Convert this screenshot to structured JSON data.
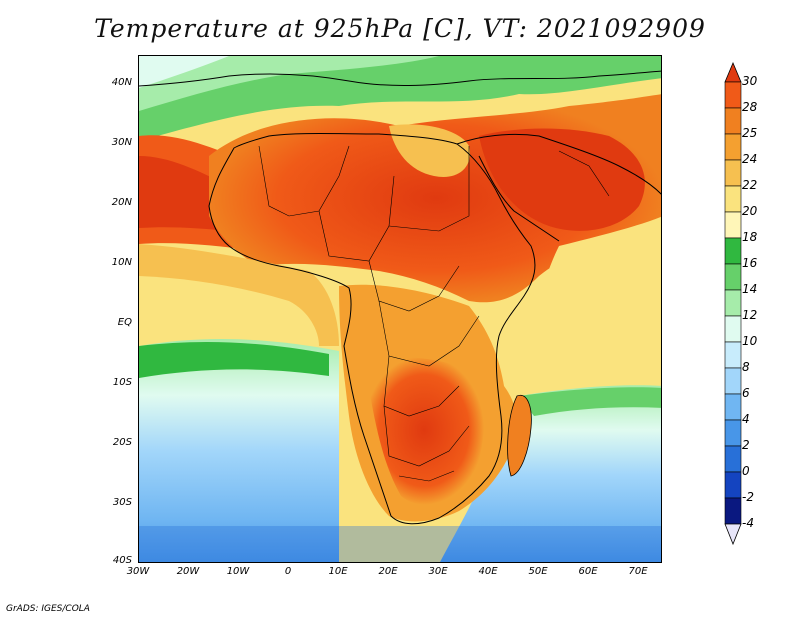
{
  "title": "Temperature at 925hPa [C], VT: 2021092909",
  "footer": "GrADS: IGES/COLA",
  "lat_labels": [
    "40N",
    "30N",
    "20N",
    "10N",
    "EQ",
    "10S",
    "20S",
    "30S",
    "40S"
  ],
  "lon_labels": [
    "30W",
    "20W",
    "10W",
    "0",
    "10E",
    "20E",
    "30E",
    "40E",
    "50E",
    "60E",
    "70E"
  ],
  "colorbar": {
    "labels": [
      "30",
      "28",
      "25",
      "24",
      "22",
      "20",
      "18",
      "16",
      "14",
      "12",
      "10",
      "8",
      "6",
      "4",
      "2",
      "0",
      "-2",
      "-4"
    ],
    "colors": [
      "#e03a10",
      "#f05a18",
      "#f08020",
      "#f4a030",
      "#f6c050",
      "#fae37e",
      "#fff6b8",
      "#30b840",
      "#66d06a",
      "#a6ecaa",
      "#e0fbf0",
      "#c8ecfc",
      "#a2d6fa",
      "#70b6f2",
      "#4896e8",
      "#2870d8",
      "#1444c0",
      "#0a1880",
      "#e8e6fa"
    ]
  }
}
